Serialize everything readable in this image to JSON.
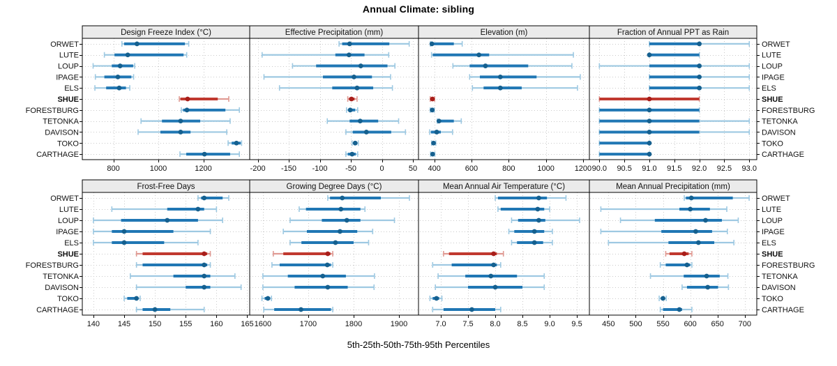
{
  "title": "Annual Climate: sibling",
  "caption": "5th-25th-50th-75th-95th Percentiles",
  "sites": [
    "ORWET",
    "LUTE",
    "LOUP",
    "IPAGE",
    "ELS",
    "SHUE",
    "FORESTBURG",
    "TETONKA",
    "DAVISON",
    "TOKO",
    "CARTHAGE"
  ],
  "highlight_site": "SHUE",
  "colors": {
    "series_main": "#2077b4",
    "series_dot": "#15608f",
    "series_light": "#9ec9e2",
    "highlight_main": "#c0392f",
    "highlight_dot": "#a81e1a",
    "highlight_light": "#e09a93",
    "header_bg": "#ebebeb",
    "grid": "#c9c9c9",
    "border": "#000000"
  },
  "chart_data": {
    "type": "scatter",
    "variant": "dot-with-percentile-whiskers",
    "percentiles": [
      5,
      25,
      50,
      75,
      95
    ],
    "legend": "none",
    "grid": "dotted",
    "panels": [
      {
        "title": "Design Freeze Index (°C)",
        "row": 0,
        "col": 0,
        "xlim": [
          662,
          1406
        ],
        "ticks": [
          800,
          1000,
          1200
        ],
        "tick_labels": [
          "800",
          "1000",
          "1200"
        ],
        "series": [
          [
            838,
            848,
            905,
            1118,
            1135
          ],
          [
            760,
            805,
            864,
            1112,
            1126
          ],
          [
            710,
            793,
            830,
            888,
            895
          ],
          [
            720,
            760,
            820,
            880,
            890
          ],
          [
            718,
            768,
            826,
            856,
            873
          ],
          [
            1093,
            1098,
            1130,
            1264,
            1313
          ],
          [
            1102,
            1110,
            1127,
            1298,
            1360
          ],
          [
            923,
            1016,
            1099,
            1186,
            1319
          ],
          [
            910,
            1009,
            1099,
            1143,
            1304
          ],
          [
            1310,
            1326,
            1347,
            1366,
            1370
          ],
          [
            1096,
            1124,
            1205,
            1319,
            1360
          ]
        ]
      },
      {
        "title": "Effective Precipitation (mm)",
        "row": 0,
        "col": 1,
        "xlim": [
          -213,
          59
        ],
        "ticks": [
          -200,
          -150,
          -100,
          -50,
          0,
          50
        ],
        "tick_labels": [
          "-200",
          "-150",
          "-100",
          "-50",
          "0",
          "50"
        ],
        "series": [
          [
            -69,
            -64,
            -52,
            12,
            44
          ],
          [
            -193,
            -75,
            -53,
            -28,
            11
          ],
          [
            -144,
            -106,
            -34,
            9,
            21
          ],
          [
            -190,
            -95,
            -45,
            -16,
            14
          ],
          [
            -165,
            -80,
            -40,
            -14,
            17
          ],
          [
            -55,
            -53,
            -49,
            -44,
            -40
          ],
          [
            -57,
            -54,
            -51,
            -43,
            -39
          ],
          [
            -88,
            -52,
            -35,
            -6,
            27
          ],
          [
            -58,
            -47,
            -25,
            15,
            38
          ],
          [
            -48,
            -46,
            -43,
            -40,
            -38
          ],
          [
            -58,
            -55,
            -48,
            -42,
            -39
          ]
        ]
      },
      {
        "title": "Elevation (m)",
        "row": 0,
        "col": 2,
        "xlim": [
          315,
          1234
        ],
        "ticks": [
          400,
          600,
          800,
          1000,
          1200
        ],
        "tick_labels": [
          "400",
          "600",
          "800",
          "1000",
          "1200"
        ],
        "series": [
          [
            379,
            382,
            387,
            505,
            550
          ],
          [
            385,
            392,
            640,
            695,
            1148
          ],
          [
            500,
            590,
            675,
            905,
            1140
          ],
          [
            590,
            645,
            755,
            950,
            1185
          ],
          [
            605,
            665,
            755,
            870,
            1170
          ],
          [
            378,
            383,
            390,
            396,
            402
          ],
          [
            378,
            383,
            389,
            395,
            400
          ],
          [
            416,
            420,
            425,
            505,
            545
          ],
          [
            375,
            382,
            413,
            435,
            498
          ],
          [
            385,
            390,
            396,
            402,
            408
          ],
          [
            380,
            385,
            391,
            397,
            403
          ]
        ]
      },
      {
        "title": "Fraction of Annual PPT as Rain",
        "row": 0,
        "col": 3,
        "xlim": [
          89.8,
          93.15
        ],
        "ticks": [
          90.0,
          90.5,
          91.0,
          91.5,
          92.0,
          92.5,
          93.0
        ],
        "tick_labels": [
          "90.0",
          "90.5",
          "91.0",
          "91.5",
          "92.0",
          "92.5",
          "93.0"
        ],
        "series": [
          [
            91,
            91,
            92,
            92,
            93
          ],
          [
            91,
            91,
            91,
            92,
            92
          ],
          [
            90,
            91,
            92,
            92,
            93
          ],
          [
            91,
            91,
            92,
            92,
            93
          ],
          [
            91,
            91,
            92,
            92,
            93
          ],
          [
            90,
            90,
            91,
            92,
            92
          ],
          [
            90,
            90,
            91,
            92,
            92
          ],
          [
            90,
            90,
            91,
            92,
            93
          ],
          [
            90,
            90,
            91,
            92,
            93
          ],
          [
            90,
            90,
            91,
            91,
            91
          ],
          [
            90,
            90,
            91,
            91,
            91
          ]
        ]
      },
      {
        "title": "Frost-Free Days",
        "row": 1,
        "col": 0,
        "xlim": [
          138.2,
          165.4
        ],
        "ticks": [
          140,
          145,
          150,
          155,
          160,
          165
        ],
        "tick_labels": [
          "140",
          "145",
          "150",
          "155",
          "160",
          "165"
        ],
        "series": [
          [
            157,
            157.5,
            158,
            161,
            162
          ],
          [
            143,
            152,
            157,
            158,
            160
          ],
          [
            140,
            144.5,
            152,
            157,
            161
          ],
          [
            140,
            143,
            145,
            153,
            159
          ],
          [
            140,
            143,
            145,
            151.5,
            157
          ],
          [
            147,
            148,
            158,
            158.5,
            159
          ],
          [
            147,
            148,
            158,
            158.5,
            159
          ],
          [
            146,
            153,
            158,
            159,
            163
          ],
          [
            147,
            155,
            158,
            159,
            164
          ],
          [
            145,
            145.5,
            147,
            147.3,
            147.6
          ],
          [
            147,
            148,
            150,
            152.5,
            158
          ]
        ]
      },
      {
        "title": "Growing Degree Days (°C)",
        "row": 1,
        "col": 1,
        "xlim": [
          1571,
          1943
        ],
        "ticks": [
          1600,
          1700,
          1800,
          1900
        ],
        "tick_labels": [
          "1600",
          "1700",
          "1800",
          "1900"
        ],
        "series": [
          [
            1743,
            1748,
            1775,
            1860,
            1923
          ],
          [
            1680,
            1695,
            1772,
            1815,
            1825
          ],
          [
            1660,
            1730,
            1785,
            1815,
            1890
          ],
          [
            1645,
            1697,
            1770,
            1808,
            1842
          ],
          [
            1660,
            1685,
            1760,
            1800,
            1833
          ],
          [
            1623,
            1645,
            1743,
            1749,
            1754
          ],
          [
            1620,
            1637,
            1742,
            1750,
            1754
          ],
          [
            1600,
            1655,
            1732,
            1783,
            1846
          ],
          [
            1600,
            1670,
            1743,
            1787,
            1845
          ],
          [
            1598,
            1604,
            1611,
            1616,
            1619
          ],
          [
            1602,
            1625,
            1684,
            1750,
            1754
          ]
        ]
      },
      {
        "title": "Mean Annual Air Temperature (°C)",
        "row": 1,
        "col": 2,
        "xlim": [
          6.59,
          9.73
        ],
        "ticks": [
          7.0,
          7.5,
          8.0,
          8.5,
          9.0,
          9.5
        ],
        "tick_labels": [
          "7.0",
          "7.5",
          "8.0",
          "8.5",
          "9.0",
          "9.5"
        ],
        "series": [
          [
            8.0,
            8.05,
            8.8,
            8.95,
            9.3
          ],
          [
            8.05,
            8.1,
            8.78,
            8.9,
            9.0
          ],
          [
            8.3,
            8.42,
            8.8,
            8.92,
            9.55
          ],
          [
            8.25,
            8.35,
            8.72,
            8.9,
            9.05
          ],
          [
            8.3,
            8.4,
            8.72,
            8.88,
            9.05
          ],
          [
            7.05,
            7.15,
            7.97,
            8.03,
            8.15
          ],
          [
            6.85,
            7.2,
            7.97,
            8.03,
            8.1
          ],
          [
            6.95,
            7.45,
            7.92,
            8.4,
            8.9
          ],
          [
            6.9,
            7.5,
            8.0,
            8.5,
            8.9
          ],
          [
            6.8,
            6.85,
            6.92,
            6.97,
            7.02
          ],
          [
            6.85,
            7.05,
            7.57,
            8.0,
            8.1
          ]
        ]
      },
      {
        "title": "Mean Annual Precipitation (mm)",
        "row": 1,
        "col": 3,
        "xlim": [
          415,
          722
        ],
        "ticks": [
          450,
          500,
          550,
          600,
          650,
          700
        ],
        "tick_labels": [
          "450",
          "500",
          "550",
          "600",
          "650",
          "700"
        ],
        "series": [
          [
            589,
            592,
            602,
            678,
            708
          ],
          [
            436,
            580,
            600,
            636,
            667
          ],
          [
            472,
            535,
            628,
            658,
            688
          ],
          [
            436,
            547,
            610,
            640,
            668
          ],
          [
            450,
            560,
            615,
            644,
            680
          ],
          [
            555,
            562,
            589,
            597,
            603
          ],
          [
            545,
            555,
            594,
            600,
            603
          ],
          [
            527,
            588,
            630,
            654,
            669
          ],
          [
            585,
            594,
            632,
            651,
            670
          ],
          [
            543,
            546,
            550,
            553,
            556
          ],
          [
            545,
            550,
            580,
            585,
            603
          ]
        ]
      }
    ]
  }
}
